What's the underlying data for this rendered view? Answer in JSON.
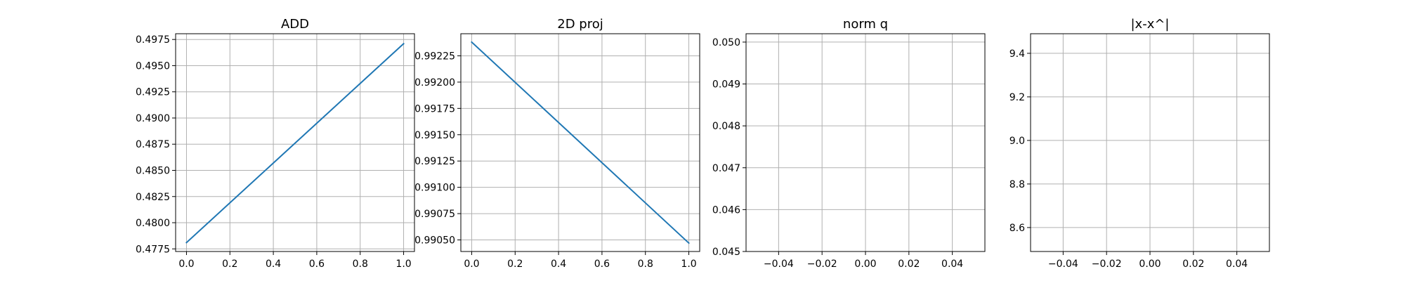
{
  "colors": {
    "series": "#1f77b4",
    "grid": "#b0b0b0",
    "axis": "#000000"
  },
  "chart_data": [
    {
      "type": "line",
      "title": "ADD",
      "xlabel": "",
      "ylabel": "",
      "grid": true,
      "xlim": [
        -0.05,
        1.05
      ],
      "ylim": [
        0.47725,
        0.49805
      ],
      "x_ticks": [
        0.0,
        0.2,
        0.4,
        0.6,
        0.8,
        1.0
      ],
      "x_tick_labels": [
        "0.0",
        "0.2",
        "0.4",
        "0.6",
        "0.8",
        "1.0"
      ],
      "y_ticks": [
        0.4775,
        0.48,
        0.4825,
        0.485,
        0.4875,
        0.49,
        0.4925,
        0.495,
        0.4975
      ],
      "y_tick_labels": [
        "0.4775",
        "0.4800",
        "0.4825",
        "0.4850",
        "0.4875",
        "0.4900",
        "0.4925",
        "0.4950",
        "0.4975"
      ],
      "series": [
        {
          "x": [
            0.0,
            1.0
          ],
          "y": [
            0.4781,
            0.4971
          ]
        }
      ]
    },
    {
      "type": "line",
      "title": "2D proj",
      "xlabel": "",
      "ylabel": "",
      "grid": true,
      "xlim": [
        -0.05,
        1.05
      ],
      "ylim": [
        0.99039,
        0.99246
      ],
      "x_ticks": [
        0.0,
        0.2,
        0.4,
        0.6,
        0.8,
        1.0
      ],
      "x_tick_labels": [
        "0.0",
        "0.2",
        "0.4",
        "0.6",
        "0.8",
        "1.0"
      ],
      "y_ticks": [
        0.9905,
        0.99075,
        0.991,
        0.99125,
        0.9915,
        0.99175,
        0.992,
        0.99225
      ],
      "y_tick_labels": [
        "0.99050",
        "0.99075",
        "0.99100",
        "0.99125",
        "0.99150",
        "0.99175",
        "0.99200",
        "0.99225"
      ],
      "series": [
        {
          "x": [
            0.0,
            1.0
          ],
          "y": [
            0.99238,
            0.99047
          ]
        }
      ]
    },
    {
      "type": "line",
      "title": "norm q",
      "xlabel": "",
      "ylabel": "",
      "grid": true,
      "xlim": [
        -0.055,
        0.055
      ],
      "ylim": [
        0.045,
        0.0502
      ],
      "x_ticks": [
        -0.04,
        -0.02,
        0.0,
        0.02,
        0.04
      ],
      "x_tick_labels": [
        "−0.04",
        "−0.02",
        "0.00",
        "0.02",
        "0.04"
      ],
      "y_ticks": [
        0.045,
        0.046,
        0.047,
        0.048,
        0.049,
        0.05
      ],
      "y_tick_labels": [
        "0.045",
        "0.046",
        "0.047",
        "0.048",
        "0.049",
        "0.050"
      ],
      "series": []
    },
    {
      "type": "line",
      "title": "|x-x^|",
      "xlabel": "",
      "ylabel": "",
      "grid": true,
      "xlim": [
        -0.055,
        0.055
      ],
      "ylim": [
        8.49,
        9.49
      ],
      "x_ticks": [
        -0.04,
        -0.02,
        0.0,
        0.02,
        0.04
      ],
      "x_tick_labels": [
        "−0.04",
        "−0.02",
        "0.00",
        "0.02",
        "0.04"
      ],
      "y_ticks": [
        8.6,
        8.8,
        9.0,
        9.2,
        9.4
      ],
      "y_tick_labels": [
        "8.6",
        "8.8",
        "9.0",
        "9.2",
        "9.4"
      ],
      "series": []
    }
  ]
}
